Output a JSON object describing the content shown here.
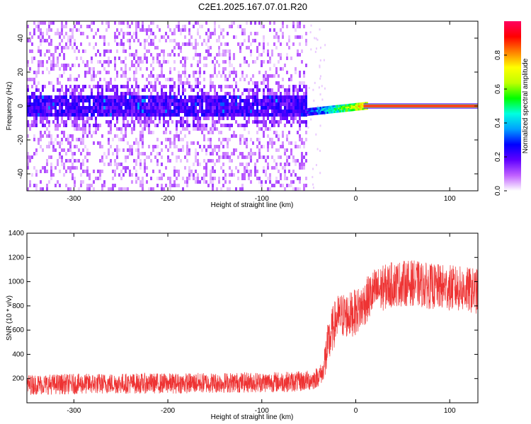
{
  "figure": {
    "title": "C2E1.2025.167.07.01.R20"
  },
  "colors": {
    "snr_line": "#ee3333",
    "frame": "#000000"
  },
  "chart_data": [
    {
      "type": "heatmap",
      "xlabel": "Height of straight line (km)",
      "ylabel": "Frequency (Hz)",
      "xlim": [
        -350,
        130
      ],
      "ylim": [
        -50,
        50
      ],
      "xticks": [
        -300,
        -200,
        -100,
        0,
        100
      ],
      "yticks": [
        -40,
        -20,
        0,
        20,
        40
      ],
      "description_free": true,
      "signal_transition_km": -52,
      "colorbar": {
        "label": "Normalized spectral amplitude",
        "range": [
          0.0,
          1.0
        ],
        "ticks": [
          0.0,
          0.2,
          0.4,
          0.6,
          0.8
        ],
        "tick_labels": [
          "0.0",
          "0.2",
          "0.4",
          "0.6",
          "0.8"
        ],
        "colormap": [
          "#ffffff",
          "#c060ff",
          "#6000ff",
          "#0000ff",
          "#00a0ff",
          "#00ffe0",
          "#00ff00",
          "#c0ff00",
          "#ffff00",
          "#ff8000",
          "#ff0000",
          "#ff0060"
        ]
      }
    },
    {
      "type": "line",
      "xlabel": "Height of straight line (km)",
      "ylabel": "SNR (10 * v/v)",
      "xlim": [
        -350,
        130
      ],
      "ylim": [
        0,
        1400
      ],
      "xticks": [
        -300,
        -200,
        -100,
        0,
        100
      ],
      "yticks": [
        200,
        400,
        600,
        800,
        1000,
        1200,
        1400
      ],
      "series": [
        {
          "x": [
            -350,
            -300,
            -250,
            -200,
            -150,
            -100,
            -60,
            -45,
            -35,
            -30,
            -25,
            -20,
            -15,
            -10,
            -5,
            0,
            5,
            10,
            15,
            20,
            30,
            40,
            60,
            80,
            100,
            120,
            130
          ],
          "y": [
            150,
            155,
            160,
            160,
            165,
            170,
            175,
            190,
            250,
            450,
            600,
            700,
            720,
            720,
            730,
            750,
            780,
            830,
            880,
            920,
            950,
            980,
            990,
            960,
            950,
            930,
            920
          ]
        }
      ]
    }
  ]
}
